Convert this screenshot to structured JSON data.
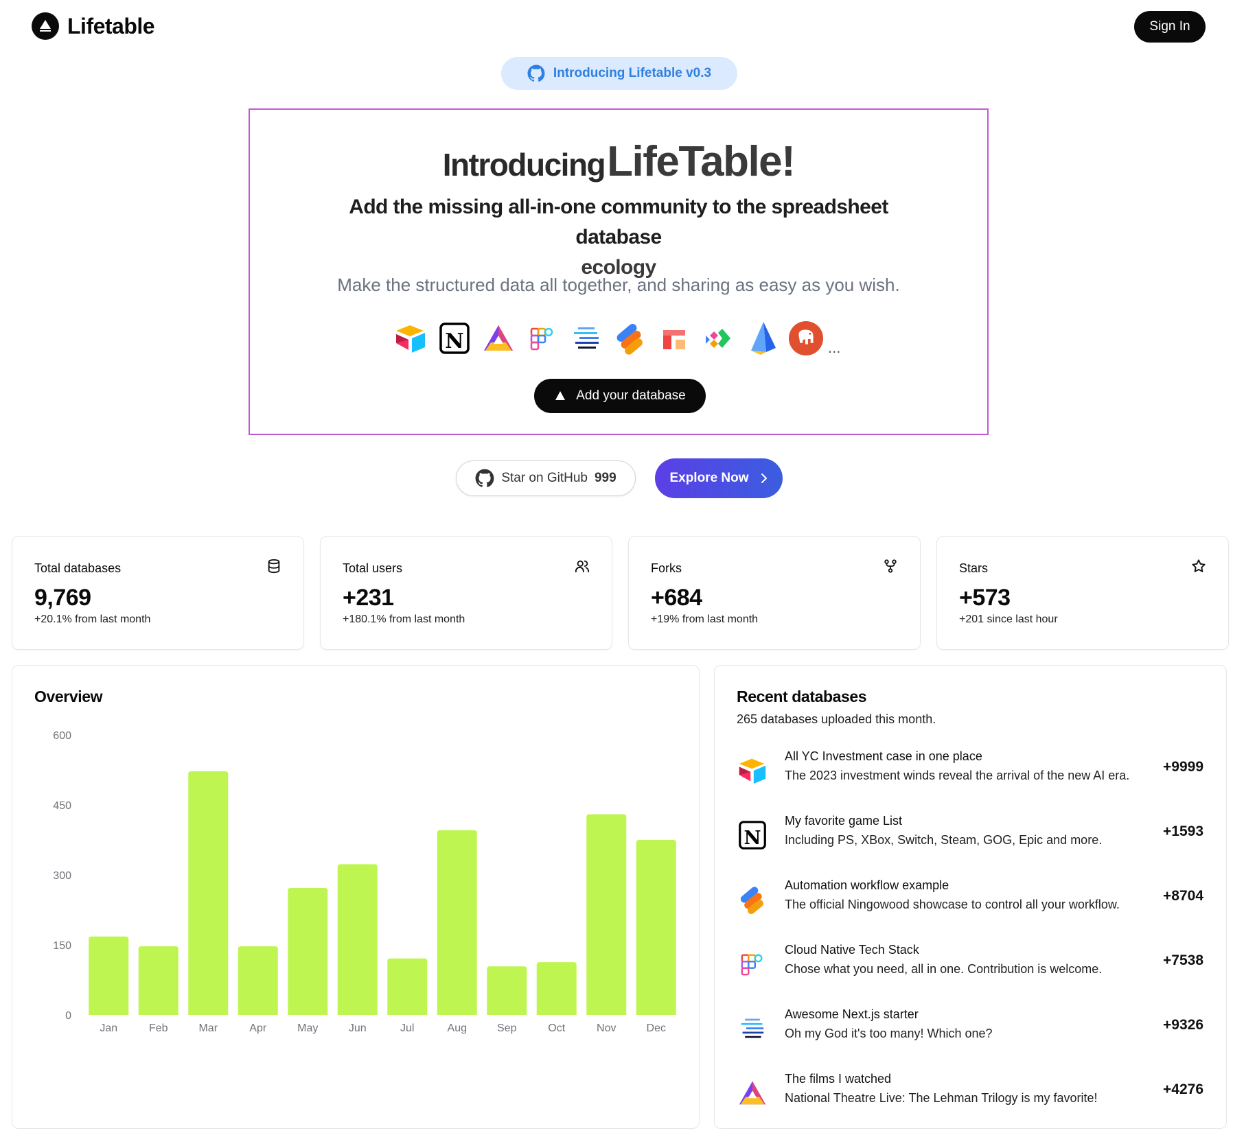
{
  "header": {
    "logo_text": "Lifetable",
    "signin_label": "Sign In"
  },
  "intro_pill": {
    "label": "Introducing Lifetable v0.3",
    "icon": "github-icon"
  },
  "hero": {
    "title_part1": "Introducing",
    "title_part2": "LifeTable!",
    "subtitle_line1": "Add the missing all-in-one community to the spreadsheet database",
    "subtitle_line2": "ecology",
    "description": "Make the structured data all together, and sharing as easy as you wish.",
    "integration_icons": [
      "airtable-icon",
      "notion-icon",
      "ark-icon",
      "teable-icon",
      "stack-icon",
      "ningowood-icon",
      "frame-icon",
      "arrows-icon",
      "prism-icon",
      "elephant-icon"
    ],
    "more": "...",
    "add_button": "Add your database"
  },
  "cta": {
    "star_label": "Star on GitHub",
    "star_count": "999",
    "explore_label": "Explore Now"
  },
  "stats": [
    {
      "label": "Total databases",
      "value": "9,769",
      "delta": "+20.1% from last month",
      "icon": "database-icon"
    },
    {
      "label": "Total users",
      "value": "+231",
      "delta": "+180.1% from last month",
      "icon": "users-icon"
    },
    {
      "label": "Forks",
      "value": "+684",
      "delta": "+19% from last month",
      "icon": "fork-icon"
    },
    {
      "label": "Stars",
      "value": "+573",
      "delta": "+201 since last hour",
      "icon": "star-icon"
    }
  ],
  "overview": {
    "title": "Overview"
  },
  "chart_data": {
    "type": "bar",
    "categories": [
      "Jan",
      "Feb",
      "Mar",
      "Apr",
      "May",
      "Jun",
      "Jul",
      "Aug",
      "Sep",
      "Oct",
      "Nov",
      "Dec"
    ],
    "values": [
      168,
      147,
      522,
      147,
      272,
      323,
      121,
      396,
      104,
      113,
      430,
      375
    ],
    "yticks": [
      "600",
      "450",
      "300",
      "150",
      "0"
    ],
    "ylim": [
      0,
      600
    ],
    "bar_color": "#bef551",
    "title": "",
    "xlabel": "",
    "ylabel": ""
  },
  "recent": {
    "title": "Recent databases",
    "subtitle": "265 databases uploaded this month.",
    "items": [
      {
        "title": "All YC Investment case in one place",
        "desc": "The 2023 investment winds reveal the arrival of the new AI era.",
        "value": "+9999",
        "icon": "airtable-icon"
      },
      {
        "title": "My favorite game List",
        "desc": "Including PS, XBox, Switch, Steam, GOG, Epic and more.",
        "value": "+1593",
        "icon": "notion-icon"
      },
      {
        "title": "Automation workflow example",
        "desc": "The official Ningowood showcase to control all your workflow.",
        "value": "+8704",
        "icon": "ningowood-icon"
      },
      {
        "title": "Cloud Native Tech Stack",
        "desc": "Chose what you need, all in one. Contribution is welcome.",
        "value": "+7538",
        "icon": "teable-icon"
      },
      {
        "title": "Awesome Next.js starter",
        "desc": "Oh my God it's too many! Which one?",
        "value": "+9326",
        "icon": "stack-icon"
      },
      {
        "title": "The films I watched",
        "desc": "National Theatre Live: The Lehman Trilogy is my favorite!",
        "value": "+4276",
        "icon": "ark-icon"
      }
    ]
  }
}
